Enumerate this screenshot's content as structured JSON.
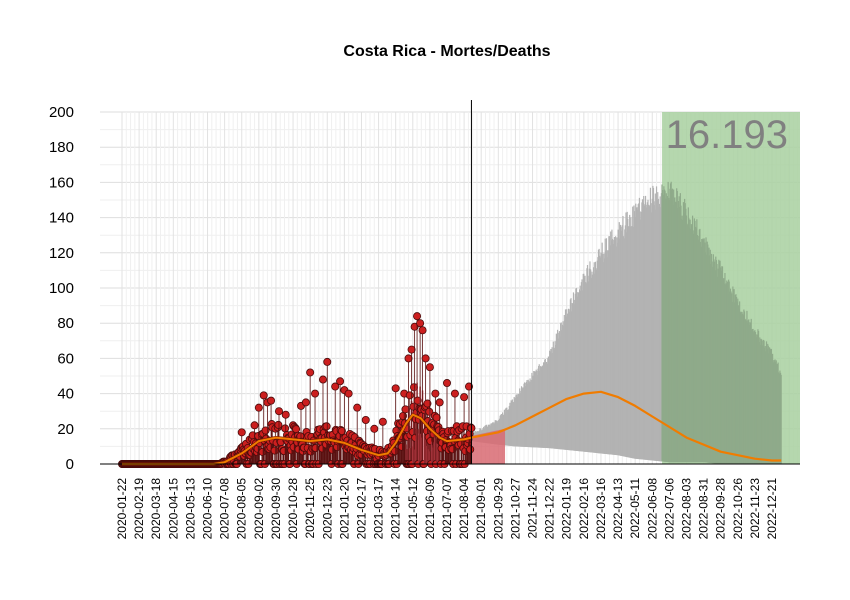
{
  "chart_data": {
    "type": "line",
    "title": "Costa Rica - Mortes/Deaths",
    "xlabel": "",
    "ylabel": "",
    "ylim": [
      0,
      200
    ],
    "yticks": [
      0,
      20,
      40,
      60,
      80,
      100,
      120,
      140,
      160,
      180,
      200
    ],
    "x_range": [
      "2020-01-22",
      "2023-01-31"
    ],
    "grid": true,
    "xticks": [
      "2020-01-22",
      "2020-02-19",
      "2020-03-18",
      "2020-04-15",
      "2020-05-13",
      "2020-06-10",
      "2020-07-08",
      "2020-08-05",
      "2020-09-02",
      "2020-09-30",
      "2020-10-28",
      "2020-11-25",
      "2020-12-23",
      "2021-01-20",
      "2021-02-17",
      "2021-03-17",
      "2021-04-14",
      "2021-05-12",
      "2021-06-09",
      "2021-07-07",
      "2021-08-04",
      "2021-09-01",
      "2021-09-29",
      "2021-10-27",
      "2021-11-24",
      "2021-12-22",
      "2022-01-19",
      "2022-02-16",
      "2022-03-16",
      "2022-04-13",
      "2022-05-11",
      "2022-06-08",
      "2022-07-06",
      "2022-08-03",
      "2022-08-31",
      "2022-09-28",
      "2022-10-26",
      "2022-11-23",
      "2022-12-21"
    ],
    "last_observed_date": "2021-08-16",
    "highlight_region": {
      "start": "2022-06-24",
      "end": "2023-01-31",
      "color": "#a8d0a0"
    },
    "big_total_label": "16.193",
    "colors": {
      "observed_points": "#cc1f1f",
      "trend_line": "#f07c00",
      "projection_band": "#b3b3b3",
      "projection_band_in_region": "#8faa8a",
      "short_forecast_band": "#d86a72",
      "observed_bars": "#c0404a"
    },
    "observed_trend": [
      [
        "2020-01-22",
        0
      ],
      [
        "2020-06-20",
        0
      ],
      [
        "2020-07-08",
        1
      ],
      [
        "2020-08-05",
        6
      ],
      [
        "2020-09-02",
        13
      ],
      [
        "2020-09-30",
        15
      ],
      [
        "2020-10-28",
        14
      ],
      [
        "2020-11-25",
        13
      ],
      [
        "2020-12-23",
        14
      ],
      [
        "2021-01-20",
        12
      ],
      [
        "2021-02-17",
        8
      ],
      [
        "2021-03-17",
        5
      ],
      [
        "2021-04-01",
        6
      ],
      [
        "2021-04-14",
        12
      ],
      [
        "2021-05-01",
        23
      ],
      [
        "2021-05-12",
        28
      ],
      [
        "2021-05-25",
        26
      ],
      [
        "2021-06-09",
        20
      ],
      [
        "2021-06-25",
        15
      ],
      [
        "2021-07-07",
        13
      ],
      [
        "2021-08-04",
        14
      ],
      [
        "2021-08-16",
        15
      ]
    ],
    "observed_peaks": [
      [
        "2020-08-05",
        18
      ],
      [
        "2020-08-26",
        22
      ],
      [
        "2020-09-02",
        32
      ],
      [
        "2020-09-10",
        39
      ],
      [
        "2020-09-16",
        35
      ],
      [
        "2020-09-22",
        36
      ],
      [
        "2020-10-05",
        30
      ],
      [
        "2020-10-16",
        28
      ],
      [
        "2020-10-28",
        22
      ],
      [
        "2020-11-10",
        33
      ],
      [
        "2020-11-18",
        35
      ],
      [
        "2020-11-25",
        52
      ],
      [
        "2020-12-03",
        40
      ],
      [
        "2020-12-16",
        48
      ],
      [
        "2020-12-23",
        58
      ],
      [
        "2021-01-05",
        44
      ],
      [
        "2021-01-13",
        47
      ],
      [
        "2021-01-20",
        42
      ],
      [
        "2021-01-27",
        40
      ],
      [
        "2021-02-10",
        32
      ],
      [
        "2021-02-24",
        25
      ],
      [
        "2021-03-10",
        20
      ],
      [
        "2021-03-24",
        24
      ],
      [
        "2021-04-14",
        43
      ],
      [
        "2021-04-28",
        40
      ],
      [
        "2021-05-05",
        60
      ],
      [
        "2021-05-10",
        65
      ],
      [
        "2021-05-15",
        78
      ],
      [
        "2021-05-19",
        84
      ],
      [
        "2021-05-24",
        80
      ],
      [
        "2021-05-28",
        76
      ],
      [
        "2021-06-02",
        60
      ],
      [
        "2021-06-09",
        55
      ],
      [
        "2021-06-18",
        40
      ],
      [
        "2021-06-25",
        35
      ],
      [
        "2021-07-07",
        46
      ],
      [
        "2021-07-20",
        40
      ],
      [
        "2021-08-04",
        38
      ],
      [
        "2021-08-12",
        44
      ]
    ],
    "short_forecast_band": {
      "start": "2021-08-16",
      "end": "2021-10-10",
      "upper_start": 16,
      "upper_end": 20
    },
    "projection_band": [
      {
        "date": "2021-08-16",
        "lower": 13,
        "upper": 18
      },
      {
        "date": "2021-09-29",
        "lower": 11,
        "upper": 26
      },
      {
        "date": "2021-10-27",
        "lower": 10,
        "upper": 40
      },
      {
        "date": "2021-12-22",
        "lower": 9,
        "upper": 65
      },
      {
        "date": "2022-01-19",
        "lower": 8,
        "upper": 90
      },
      {
        "date": "2022-02-16",
        "lower": 7,
        "upper": 110
      },
      {
        "date": "2022-03-16",
        "lower": 6,
        "upper": 125
      },
      {
        "date": "2022-04-13",
        "lower": 5,
        "upper": 138
      },
      {
        "date": "2022-05-11",
        "lower": 3,
        "upper": 150
      },
      {
        "date": "2022-06-08",
        "lower": 2,
        "upper": 158
      },
      {
        "date": "2022-07-06",
        "lower": 1,
        "upper": 162
      },
      {
        "date": "2022-08-03",
        "lower": 1,
        "upper": 150
      },
      {
        "date": "2022-08-31",
        "lower": 1,
        "upper": 132
      },
      {
        "date": "2022-09-28",
        "lower": 0,
        "upper": 115
      },
      {
        "date": "2022-10-26",
        "lower": 0,
        "upper": 96
      },
      {
        "date": "2022-11-23",
        "lower": 0,
        "upper": 80
      },
      {
        "date": "2022-12-21",
        "lower": 0,
        "upper": 65
      },
      {
        "date": "2023-01-05",
        "lower": 0,
        "upper": 55
      }
    ],
    "projection_trend": [
      [
        "2021-08-16",
        15
      ],
      [
        "2021-09-29",
        18
      ],
      [
        "2021-10-27",
        22
      ],
      [
        "2021-11-24",
        27
      ],
      [
        "2021-12-22",
        32
      ],
      [
        "2022-01-19",
        37
      ],
      [
        "2022-02-16",
        40
      ],
      [
        "2022-03-16",
        41
      ],
      [
        "2022-04-13",
        38
      ],
      [
        "2022-05-11",
        33
      ],
      [
        "2022-06-08",
        27
      ],
      [
        "2022-07-06",
        21
      ],
      [
        "2022-08-03",
        15
      ],
      [
        "2022-08-31",
        11
      ],
      [
        "2022-09-28",
        7
      ],
      [
        "2022-10-26",
        5
      ],
      [
        "2022-11-23",
        3
      ],
      [
        "2022-12-21",
        2
      ],
      [
        "2023-01-05",
        2
      ]
    ]
  }
}
